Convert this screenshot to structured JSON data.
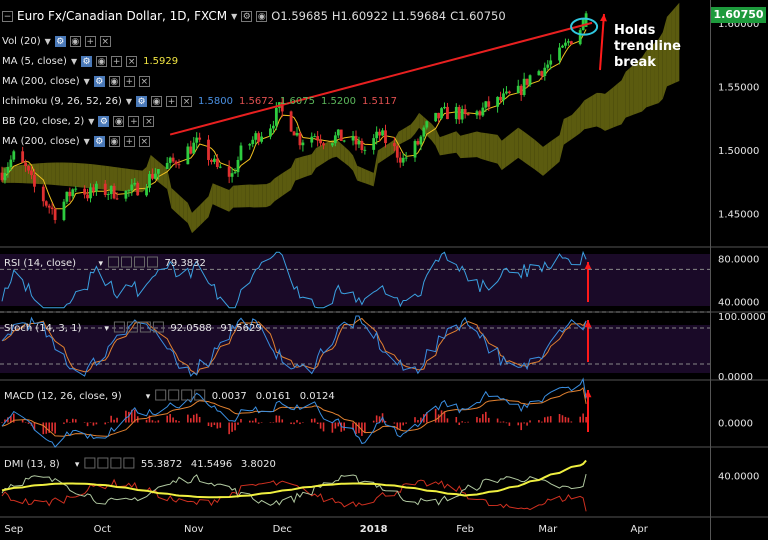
{
  "header": {
    "symbol": "Euro Fx/Canadian Dollar, 1D, FXCM",
    "ohlc": {
      "o": "O1.59685",
      "h": "H1.60922",
      "l": "L1.59684",
      "c": "C1.60750"
    }
  },
  "last_price": "1.60750",
  "annotation": "Holds trendline break",
  "indicators": [
    {
      "id": "vol",
      "label": "Vol (20)",
      "values": []
    },
    {
      "id": "ma5",
      "label": "MA (5, close)",
      "values": [
        {
          "text": "1.5929",
          "color": "#f0e442"
        }
      ]
    },
    {
      "id": "ma200",
      "label": "MA (200, close)",
      "values": []
    },
    {
      "id": "ichimoku",
      "label": "Ichimoku (9, 26, 52, 26)",
      "values": [
        {
          "text": "1.5800",
          "color": "#4a90e2"
        },
        {
          "text": "1.5672",
          "color": "#e05050"
        },
        {
          "text": "1.6075",
          "color": "#5cb85c"
        },
        {
          "text": "1.5200",
          "color": "#5cb85c"
        },
        {
          "text": "1.5117",
          "color": "#e05050"
        }
      ]
    },
    {
      "id": "bb",
      "label": "BB (20, close, 2)",
      "values": []
    },
    {
      "id": "ma200b",
      "label": "MA (200, close)",
      "values": []
    }
  ],
  "colors": {
    "bull": "#2ecc40",
    "bear": "#e03030",
    "cloud_bull": "#6b6b12",
    "cloud_bear": "#7a4a40",
    "trendline": "#e82020",
    "ma5": "#f0c020",
    "rsi": "#3aa0e0",
    "stoch_k": "#3a8ee0",
    "stoch_d": "#e08030",
    "macd": "#3a8ee0",
    "signal": "#e08030",
    "hist": "#e03030",
    "dmi_adx": "#f0f040",
    "dmi_plus": "#b0c8a0",
    "dmi_minus": "#d03020",
    "panel_bg": "#1a0a28"
  },
  "chart_data": [
    {
      "type": "candlestick",
      "id": "price",
      "title": "Euro Fx/Canadian Dollar, 1D, FXCM",
      "ylim": [
        1.425,
        1.618
      ],
      "yticks": [
        "1.60000",
        "1.55000",
        "1.50000",
        "1.45000"
      ],
      "ytick_values": [
        1.6,
        1.55,
        1.5,
        1.45
      ],
      "xticks": [
        "Sep",
        "Oct",
        "Nov",
        "Dec",
        "2018",
        "Feb",
        "Mar",
        "Apr"
      ],
      "x_range": [
        "2017-08-28",
        "2018-04-25"
      ],
      "xtick_dates": [
        "2017-09-01",
        "2017-10-01",
        "2017-11-01",
        "2017-12-01",
        "2018-01-01",
        "2018-02-01",
        "2018-03-01",
        "2018-04-01"
      ],
      "last_bar": {
        "open": 1.59685,
        "high": 1.60922,
        "low": 1.59684,
        "close": 1.6075
      },
      "close_path": [
        [
          "2017-08-28",
          1.482
        ],
        [
          "2017-09-01",
          1.495
        ],
        [
          "2017-09-05",
          1.485
        ],
        [
          "2017-09-08",
          1.47
        ],
        [
          "2017-09-12",
          1.458
        ],
        [
          "2017-09-15",
          1.45
        ],
        [
          "2017-09-19",
          1.462
        ],
        [
          "2017-09-22",
          1.472
        ],
        [
          "2017-09-26",
          1.465
        ],
        [
          "2017-09-29",
          1.468
        ],
        [
          "2017-10-04",
          1.467
        ],
        [
          "2017-10-09",
          1.466
        ],
        [
          "2017-10-13",
          1.47
        ],
        [
          "2017-10-17",
          1.478
        ],
        [
          "2017-10-20",
          1.485
        ],
        [
          "2017-10-25",
          1.49
        ],
        [
          "2017-10-30",
          1.5
        ],
        [
          "2017-11-02",
          1.505
        ],
        [
          "2017-11-06",
          1.495
        ],
        [
          "2017-11-09",
          1.485
        ],
        [
          "2017-11-14",
          1.48
        ],
        [
          "2017-11-17",
          1.498
        ],
        [
          "2017-11-22",
          1.51
        ],
        [
          "2017-11-27",
          1.52
        ],
        [
          "2017-11-30",
          1.532
        ],
        [
          "2017-12-04",
          1.52
        ],
        [
          "2017-12-07",
          1.508
        ],
        [
          "2017-12-12",
          1.512
        ],
        [
          "2017-12-15",
          1.508
        ],
        [
          "2017-12-20",
          1.51
        ],
        [
          "2017-12-26",
          1.505
        ],
        [
          "2017-12-29",
          1.5
        ],
        [
          "2018-01-03",
          1.512
        ],
        [
          "2018-01-08",
          1.5
        ],
        [
          "2018-01-11",
          1.492
        ],
        [
          "2018-01-16",
          1.505
        ],
        [
          "2018-01-19",
          1.518
        ],
        [
          "2018-01-24",
          1.528
        ],
        [
          "2018-01-29",
          1.53
        ],
        [
          "2018-02-01",
          1.525
        ],
        [
          "2018-02-06",
          1.53
        ],
        [
          "2018-02-09",
          1.535
        ],
        [
          "2018-02-14",
          1.54
        ],
        [
          "2018-02-19",
          1.545
        ],
        [
          "2018-02-23",
          1.558
        ],
        [
          "2018-02-28",
          1.565
        ],
        [
          "2018-03-05",
          1.575
        ],
        [
          "2018-03-08",
          1.585
        ],
        [
          "2018-03-12",
          1.596
        ],
        [
          "2018-03-14",
          1.6075
        ]
      ],
      "series": [
        {
          "name": "Trendline",
          "points": [
            [
              "2017-10-24",
              1.512
            ],
            [
              "2018-03-16",
              1.6
            ]
          ]
        }
      ]
    },
    {
      "type": "line",
      "id": "rsi",
      "title": "RSI (14, close)",
      "last": "79.3832",
      "ylim": [
        30,
        90
      ],
      "yticks": [
        "80.0000",
        "40.0000"
      ],
      "ytick_values": [
        80,
        40
      ],
      "bands": [
        70,
        30
      ]
    },
    {
      "type": "line",
      "id": "stoch",
      "title": "Stoch (14, 3, 1)",
      "last_k": "92.0588",
      "last_d": "91.5629",
      "ylim": [
        -5,
        105
      ],
      "yticks": [
        "100.0000",
        "0.0000"
      ],
      "ytick_values": [
        100,
        0
      ],
      "bands": [
        80,
        20
      ]
    },
    {
      "type": "line",
      "id": "macd",
      "title": "MACD (12, 26, close, 9)",
      "values_text": [
        {
          "text": "0.0037",
          "color": "#e03030"
        },
        {
          "text": "0.0161",
          "color": "#3a8ee0"
        },
        {
          "text": "0.0124",
          "color": "#e08030"
        }
      ],
      "ylim": [
        -0.015,
        0.025
      ],
      "yticks": [
        "0.0000"
      ],
      "ytick_values": [
        0
      ]
    },
    {
      "type": "line",
      "id": "dmi",
      "title": "DMI (13, 8)",
      "values_text": [
        {
          "text": "55.3872",
          "color": "#f0f040"
        },
        {
          "text": "41.5496",
          "color": "#b0c8a0"
        },
        {
          "text": "3.8020",
          "color": "#d03020"
        }
      ],
      "ylim": [
        0,
        65
      ],
      "yticks": [
        "40.0000"
      ],
      "ytick_values": [
        40
      ]
    }
  ]
}
